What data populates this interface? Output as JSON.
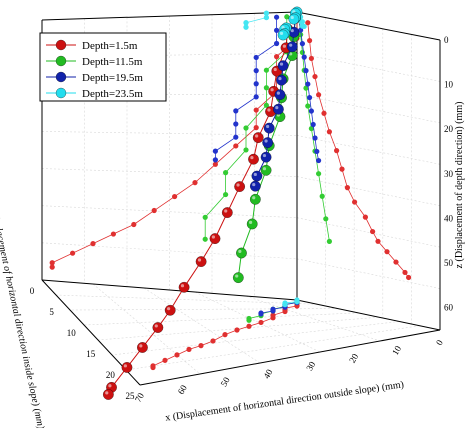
{
  "chart_data": {
    "type": "scatter",
    "xlabel": "x (Displacement of horizontal direction outside slope) (mm)",
    "ylabel": "y (Displacement of horizontal direction inside slope) (mm)",
    "zlabel": "z (Displacement of depth direction) (mm)",
    "x_ticks": [
      "0",
      "10",
      "20",
      "30",
      "40",
      "50",
      "60",
      "70"
    ],
    "y_ticks": [
      "0",
      "5",
      "10",
      "15",
      "20",
      "25"
    ],
    "z_ticks": [
      "0",
      "10",
      "20",
      "30",
      "40",
      "50",
      "60"
    ],
    "xlim": [
      0,
      70
    ],
    "ylim": [
      0,
      25
    ],
    "zlim": [
      0,
      65
    ],
    "legend_position": "top-left",
    "grid": true,
    "series": [
      {
        "name": "Depth=1.5m",
        "color": "#cc1111",
        "projection_color": "#e03030",
        "x": [
          6,
          7,
          8,
          10,
          12,
          15,
          18,
          22,
          25,
          28,
          32,
          38,
          42,
          45,
          50,
          55,
          60,
          62
        ],
        "y": [
          0,
          0,
          1,
          1,
          1,
          2,
          2,
          3,
          4,
          5,
          6,
          7,
          8,
          9,
          10,
          11,
          12,
          12
        ],
        "z": [
          2,
          6,
          10,
          14,
          18,
          22,
          26,
          30,
          34,
          38,
          41,
          44,
          47,
          49,
          51,
          53,
          55,
          56
        ]
      },
      {
        "name": "Depth=11.5m",
        "color": "#22bb22",
        "projection_color": "#33cc33",
        "x": [
          1,
          2,
          3,
          4,
          5,
          6,
          8,
          10,
          12,
          14,
          16,
          18
        ],
        "y": [
          0,
          0,
          0,
          1,
          1,
          1,
          2,
          2,
          3,
          3,
          4,
          4
        ],
        "z": [
          1,
          5,
          9,
          13,
          17,
          21,
          26,
          31,
          36,
          41,
          46,
          51
        ]
      },
      {
        "name": "Depth=19.5m",
        "color": "#1122aa",
        "projection_color": "#2233cc",
        "x": [
          1,
          2,
          3,
          4,
          5,
          6,
          7,
          8,
          9,
          10,
          11,
          12
        ],
        "y": [
          0,
          0,
          0,
          1,
          1,
          1,
          1,
          2,
          2,
          2,
          3,
          3
        ],
        "z": [
          1,
          4,
          7,
          10,
          13,
          16,
          19,
          22,
          25,
          28,
          31,
          33
        ]
      },
      {
        "name": "Depth=23.5m",
        "color": "#22ddee",
        "projection_color": "#44e6f2",
        "x": [
          0,
          1,
          1,
          2,
          2,
          3,
          3,
          4
        ],
        "y": [
          0,
          0,
          0,
          0,
          1,
          1,
          1,
          1
        ],
        "z": [
          0,
          0,
          1,
          1,
          2,
          2,
          3,
          3
        ]
      }
    ]
  }
}
